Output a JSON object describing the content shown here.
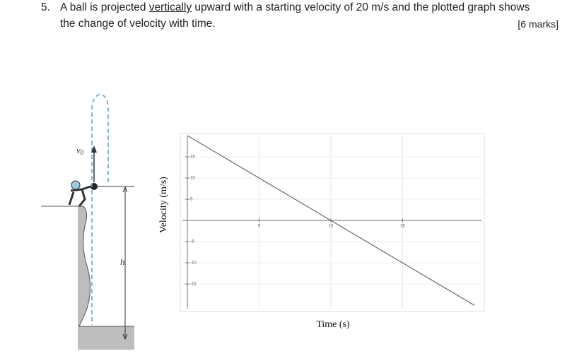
{
  "question": {
    "number": "5.",
    "text_before": "A ball is projected ",
    "underlined": "vertically",
    "text_after": " upward with a starting velocity of 20 m/s and the plotted graph shows",
    "line2": "the change of velocity with time.",
    "marks": "[6 marks]"
  },
  "figure": {
    "v_label": "v",
    "v_subscript": "0",
    "h_label": "h"
  },
  "chart_data": {
    "type": "line",
    "x_label": "Time (s)",
    "y_label": "Velocity (m/s)",
    "x": [
      0,
      20
    ],
    "values": [
      20,
      -20
    ],
    "color": "#666666",
    "xlim": [
      -0.35,
      20.55
    ],
    "ylim": [
      -20.8,
      20
    ],
    "xticks": [
      5,
      10,
      15
    ],
    "yticks": [
      -15,
      -10,
      -5,
      5,
      10,
      15
    ],
    "grid": true
  }
}
